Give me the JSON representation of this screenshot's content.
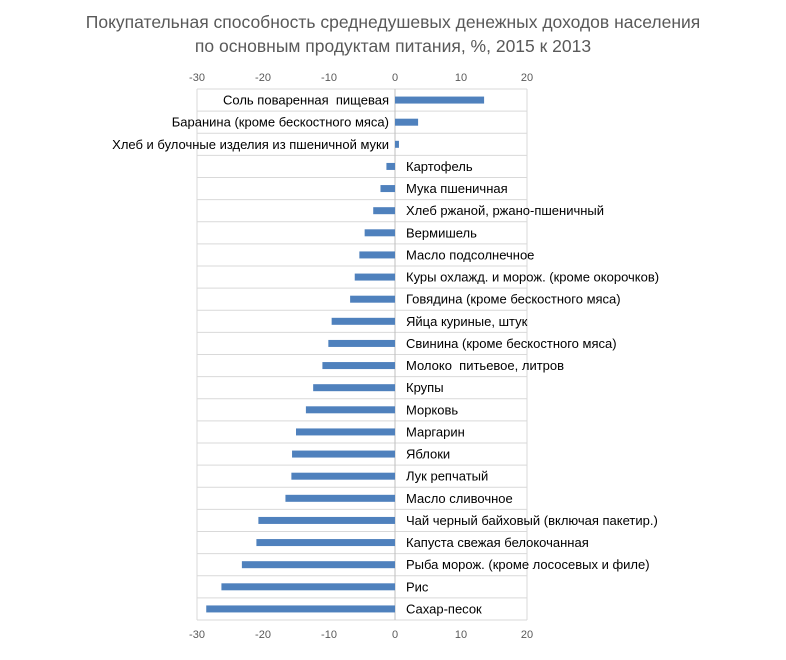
{
  "chart_data": {
    "type": "bar",
    "orientation": "horizontal",
    "title": "Покупательная способность среднедушевых денежных доходов населения",
    "subtitle": "по основным продуктам питания, %, 2015 к 2013",
    "xlim": [
      -30,
      20
    ],
    "xticks": [
      "-30",
      "-20",
      "-10",
      "0",
      "10",
      "20"
    ],
    "grid": true,
    "legend": "none",
    "bar_color": "#4F81BD",
    "categories": [
      "Соль поваренная  пищевая",
      "Баранина (кроме бескостного мяса)",
      "Хлеб и булочные изделия из пшеничной муки",
      "Картофель",
      "Мука пшеничная",
      "Хлеб ржаной, ржано-пшеничный",
      "Вермишель",
      "Масло подсолнечное",
      "Куры охлажд. и морож. (кроме окорочков)",
      "Говядина (кроме бескостного мяса)",
      "Яйца куриные, штук",
      "Свинина (кроме бескостного мяса)",
      "Молоко  питьевое, литров",
      "Крупы",
      "Морковь",
      "Маргарин",
      "Яблоки",
      "Лук репчатый",
      "Масло сливочное",
      "Чай черный байховый (включая пакетир.)",
      "Капуста свежая белокочанная",
      "Рыба морож. (кроме лососевых и филе)",
      "Рис",
      "Сахар-песок"
    ],
    "values": [
      13.5,
      3.5,
      0.6,
      -1.3,
      -2.2,
      -3.3,
      -4.6,
      -5.4,
      -6.1,
      -6.8,
      -9.6,
      -10.1,
      -11.0,
      -12.4,
      -13.5,
      -15.0,
      -15.6,
      -15.7,
      -16.6,
      -20.7,
      -21.0,
      -23.2,
      -26.3,
      -28.6
    ]
  }
}
